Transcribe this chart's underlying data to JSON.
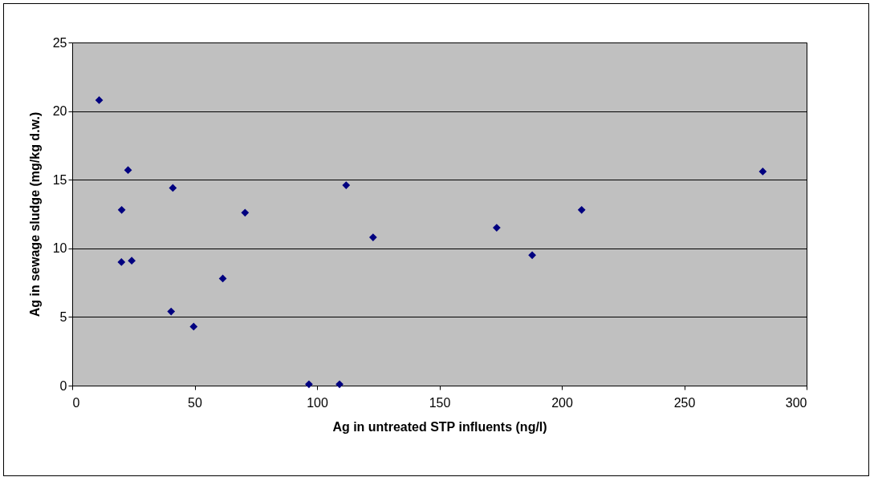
{
  "chart_data": {
    "type": "scatter",
    "xlabel": "Ag in untreated STP influents (ng/l)",
    "ylabel": "Ag in sewage sludge (mg/kg d.w.)",
    "x": [
      11.0,
      22.8,
      41.1,
      20.2,
      70.6,
      111.9,
      122.9,
      20.1,
      24.3,
      61.5,
      40.4,
      49.6,
      96.7,
      109.2,
      173.4,
      187.9,
      208.1,
      282.1
    ],
    "values": [
      20.8,
      15.7,
      14.4,
      12.8,
      12.6,
      14.6,
      10.8,
      9.0,
      9.1,
      7.8,
      5.4,
      4.3,
      0.1,
      0.1,
      11.5,
      9.5,
      12.8,
      15.6
    ],
    "color": "#000080",
    "marker": "diamond",
    "xlim": [
      0,
      300
    ],
    "xticks": [
      0,
      50,
      100,
      150,
      200,
      250,
      300
    ],
    "ylim": [
      0,
      25
    ],
    "yticks": [
      0,
      5,
      10,
      15,
      20,
      25
    ],
    "grid": "y"
  }
}
